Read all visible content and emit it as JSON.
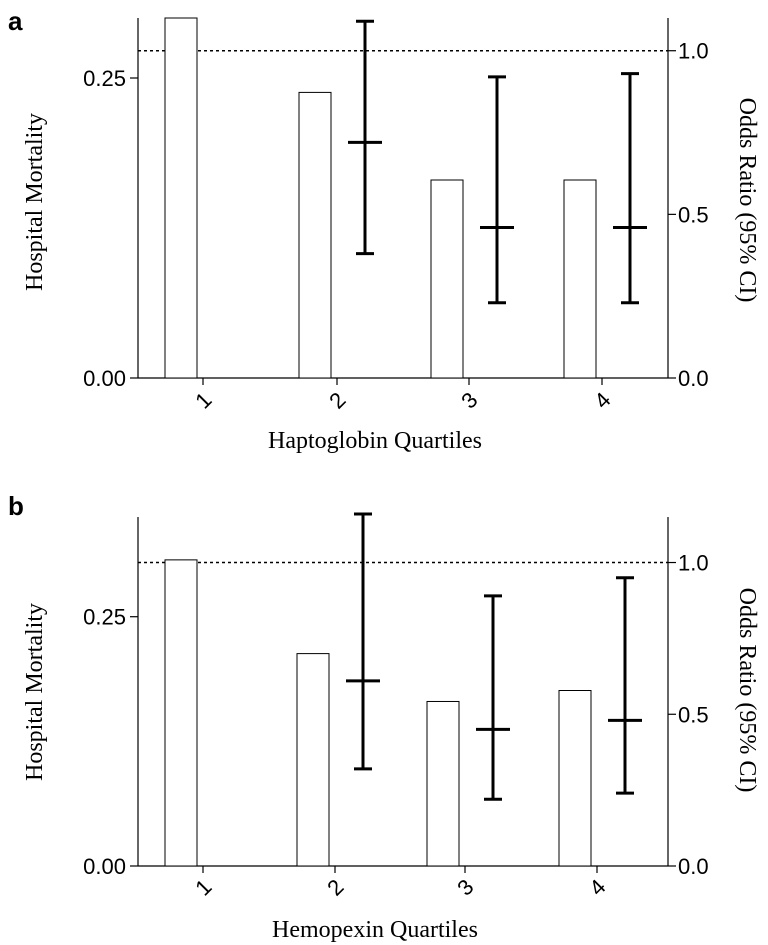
{
  "chart_data": [
    {
      "panel": "a",
      "type": "bar",
      "categories": [
        "1",
        "2",
        "3",
        "4"
      ],
      "xlabel": "Haptoglobin Quartiles",
      "ylabel": "Hospital Mortality",
      "ylabel_right": "Odds Ratio (95% CI)",
      "ylim": [
        0,
        0.3
      ],
      "ylim_right": [
        0,
        1.1
      ],
      "yticks": [
        "0.00",
        "0.25"
      ],
      "yticks_right": [
        "0.0",
        "0.5",
        "1.0"
      ],
      "reference_line_right": 1.0,
      "mortality": [
        0.3,
        0.238,
        0.165,
        0.165
      ],
      "odds_ratio": [
        {
          "category": "2",
          "or": 0.72,
          "lower": 0.38,
          "upper": 1.09
        },
        {
          "category": "3",
          "or": 0.46,
          "lower": 0.23,
          "upper": 0.92
        },
        {
          "category": "4",
          "or": 0.46,
          "lower": 0.23,
          "upper": 0.93
        }
      ]
    },
    {
      "panel": "b",
      "type": "bar",
      "categories": [
        "1",
        "2",
        "3",
        "4"
      ],
      "xlabel": "Hemopexin Quartiles",
      "ylabel": "Hospital Mortality",
      "ylabel_right": "Odds Ratio (95% CI)",
      "ylim": [
        0,
        0.35
      ],
      "ylim_right": [
        0,
        1.15
      ],
      "yticks": [
        "0.00",
        "0.25"
      ],
      "yticks_right": [
        "0.0",
        "0.5",
        "1.0"
      ],
      "reference_line_right": 1.0,
      "mortality": [
        0.307,
        0.213,
        0.165,
        0.176
      ],
      "odds_ratio": [
        {
          "category": "2",
          "or": 0.61,
          "lower": 0.32,
          "upper": 1.16
        },
        {
          "category": "3",
          "or": 0.45,
          "lower": 0.22,
          "upper": 0.89
        },
        {
          "category": "4",
          "or": 0.48,
          "lower": 0.24,
          "upper": 0.95
        }
      ]
    }
  ]
}
